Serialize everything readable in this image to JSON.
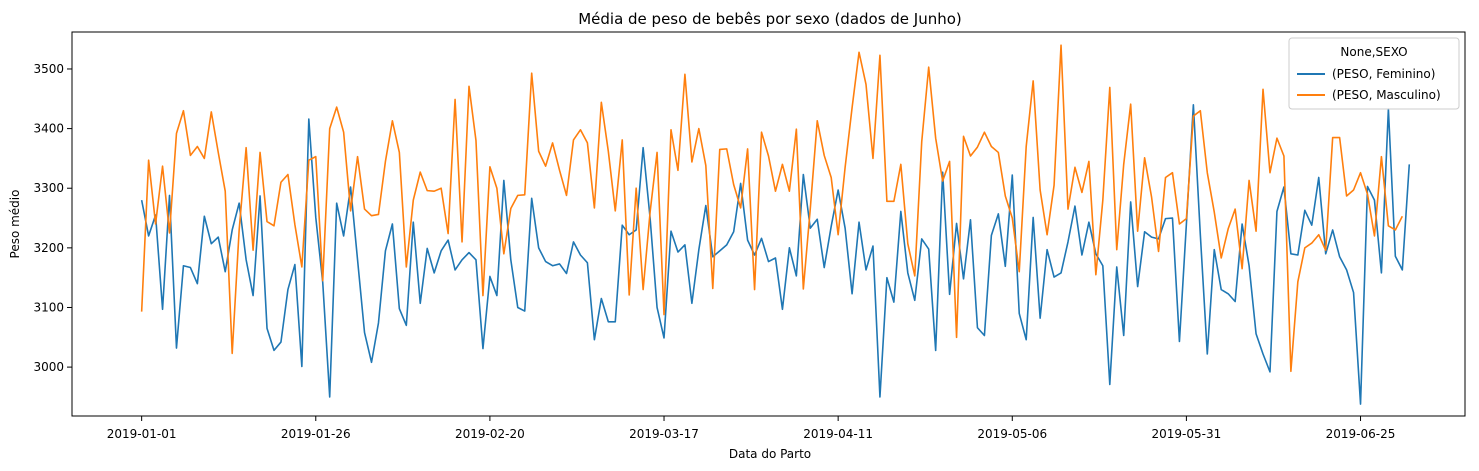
{
  "chart_data": {
    "type": "line",
    "title": "Média de peso de bebês por sexo (dados de Junho)",
    "xlabel": "Data do Parto",
    "ylabel": "Peso médio",
    "x_start": "2019-01-01",
    "x_end": "2019-06-30",
    "xlim": [
      "2018-12-22",
      "2019-07-10"
    ],
    "xticks": [
      "2019-01-01",
      "2019-01-26",
      "2019-02-20",
      "2019-03-17",
      "2019-04-11",
      "2019-05-06",
      "2019-05-31",
      "2019-06-25"
    ],
    "yticks": [
      3000,
      3100,
      3200,
      3300,
      3400,
      3500
    ],
    "ylim": [
      2918,
      3562
    ],
    "grid": false,
    "legend": {
      "title": "None,SEXO",
      "position": "top-right"
    },
    "series": [
      {
        "name": "(PESO, Feminino)",
        "color": "#1f77b4",
        "values": [
          3280,
          3220,
          3255,
          3097,
          3288,
          3032,
          3170,
          3167,
          3140,
          3253,
          3207,
          3218,
          3160,
          3230,
          3275,
          3180,
          3120,
          3287,
          3065,
          3028,
          3042,
          3130,
          3172,
          3001,
          3416,
          3251,
          3142,
          2950,
          3275,
          3220,
          3302,
          3180,
          3058,
          3008,
          3074,
          3195,
          3240,
          3098,
          3070,
          3243,
          3107,
          3199,
          3158,
          3195,
          3213,
          3163,
          3180,
          3192,
          3180,
          3031,
          3152,
          3120,
          3313,
          3180,
          3100,
          3094,
          3283,
          3200,
          3177,
          3170,
          3173,
          3157,
          3210,
          3188,
          3175,
          3046,
          3115,
          3076,
          3076,
          3238,
          3222,
          3230,
          3368,
          3250,
          3100,
          3049,
          3228,
          3193,
          3205,
          3107,
          3197,
          3271,
          3185,
          3195,
          3205,
          3227,
          3308,
          3213,
          3188,
          3216,
          3177,
          3183,
          3097,
          3200,
          3153,
          3323,
          3233,
          3248,
          3167,
          3236,
          3297,
          3233,
          3123,
          3243,
          3163,
          3203,
          2950,
          3150,
          3109,
          3261,
          3158,
          3112,
          3215,
          3198,
          3028,
          3327,
          3122,
          3241,
          3148,
          3247,
          3066,
          3053,
          3221,
          3257,
          3169,
          3322,
          3090,
          3046,
          3251,
          3082,
          3197,
          3151,
          3158,
          3210,
          3270,
          3188,
          3243,
          3190,
          3170,
          2971,
          3168,
          3053,
          3277,
          3135,
          3227,
          3218,
          3215,
          3249,
          3250,
          3043,
          3240,
          3440,
          3222,
          3022,
          3197,
          3130,
          3123,
          3110,
          3240,
          3170,
          3056,
          3022,
          2992,
          3261,
          3302,
          3190,
          3188,
          3263,
          3238,
          3318,
          3190,
          3230,
          3185,
          3163,
          3125,
          2938,
          3303,
          3280,
          3158,
          3433,
          3186,
          3163,
          3340
        ]
      },
      {
        "name": "(PESO, Masculino)",
        "color": "#ff7f0e",
        "values": [
          3093,
          3347,
          3240,
          3337,
          3225,
          3392,
          3430,
          3355,
          3370,
          3350,
          3428,
          3360,
          3295,
          3023,
          3230,
          3368,
          3196,
          3360,
          3244,
          3237,
          3310,
          3323,
          3239,
          3168,
          3347,
          3353,
          3145,
          3400,
          3436,
          3394,
          3262,
          3353,
          3265,
          3254,
          3256,
          3345,
          3413,
          3360,
          3168,
          3280,
          3327,
          3296,
          3295,
          3300,
          3224,
          3449,
          3210,
          3471,
          3380,
          3120,
          3336,
          3300,
          3190,
          3266,
          3288,
          3289,
          3493,
          3362,
          3337,
          3376,
          3330,
          3288,
          3381,
          3398,
          3376,
          3267,
          3444,
          3362,
          3262,
          3381,
          3121,
          3300,
          3130,
          3260,
          3360,
          3088,
          3398,
          3330,
          3491,
          3344,
          3400,
          3338,
          3132,
          3365,
          3366,
          3306,
          3267,
          3366,
          3130,
          3394,
          3354,
          3295,
          3340,
          3295,
          3399,
          3131,
          3266,
          3413,
          3355,
          3318,
          3222,
          3335,
          3435,
          3528,
          3474,
          3350,
          3523,
          3278,
          3278,
          3340,
          3207,
          3153,
          3378,
          3503,
          3384,
          3312,
          3345,
          3050,
          3387,
          3354,
          3369,
          3394,
          3370,
          3360,
          3287,
          3250,
          3160,
          3370,
          3480,
          3297,
          3222,
          3305,
          3540,
          3265,
          3335,
          3293,
          3345,
          3155,
          3280,
          3469,
          3197,
          3340,
          3441,
          3228,
          3351,
          3285,
          3194,
          3318,
          3326,
          3240,
          3249,
          3421,
          3430,
          3326,
          3260,
          3183,
          3232,
          3265,
          3165,
          3313,
          3228,
          3466,
          3326,
          3384,
          3354,
          2993,
          3143,
          3200,
          3208,
          3222,
          3196,
          3385,
          3385,
          3287,
          3297,
          3326,
          3290,
          3220,
          3353,
          3237,
          3230,
          3253
        ]
      }
    ]
  }
}
